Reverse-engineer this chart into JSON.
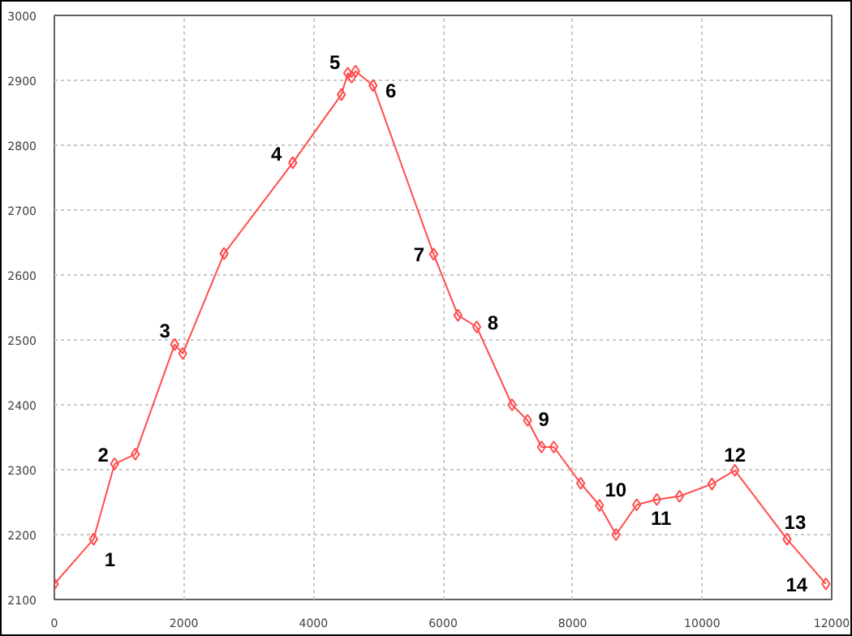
{
  "chart_data": {
    "type": "line",
    "x": [
      0,
      605,
      930,
      1250,
      1857,
      1982,
      2620,
      3680,
      4430,
      4530,
      4590,
      4650,
      4920,
      5855,
      6230,
      6520,
      7065,
      7305,
      7520,
      7710,
      8125,
      8415,
      8670,
      8990,
      9300,
      9650,
      10150,
      10505,
      11310,
      11910
    ],
    "series": [
      {
        "color": "#ff4d4d",
        "values": [
          2124,
          2193,
          2309,
          2324,
          2493,
          2479,
          2633,
          2773,
          2878,
          2911,
          2905,
          2914,
          2892,
          2632,
          2538,
          2520,
          2400,
          2376,
          2335,
          2335,
          2279,
          2245,
          2200,
          2246,
          2254,
          2259,
          2278,
          2299,
          2193,
          2124
        ]
      }
    ],
    "xlim": [
      0,
      12000
    ],
    "ylim": [
      2100,
      3000
    ],
    "xticks": [
      0,
      2000,
      4000,
      6000,
      8000,
      10000,
      12000
    ],
    "yticks": [
      2100,
      2200,
      2300,
      2400,
      2500,
      2600,
      2700,
      2800,
      2900,
      3000
    ],
    "grid": true,
    "marker": "diamond",
    "line_style": "solid",
    "annotations": [
      {
        "text": "1",
        "x": 605,
        "y": 2193
      },
      {
        "text": "2",
        "x": 930,
        "y": 2309
      },
      {
        "text": "3",
        "x": 1857,
        "y": 2493
      },
      {
        "text": "4",
        "x": 3680,
        "y": 2773
      },
      {
        "text": "5",
        "x": 4530,
        "y": 2911
      },
      {
        "text": "6",
        "x": 4920,
        "y": 2892
      },
      {
        "text": "7",
        "x": 5855,
        "y": 2632
      },
      {
        "text": "8",
        "x": 6520,
        "y": 2520
      },
      {
        "text": "9",
        "x": 7305,
        "y": 2376
      },
      {
        "text": "10",
        "x": 8415,
        "y": 2245
      },
      {
        "text": "11",
        "x": 8990,
        "y": 2246
      },
      {
        "text": "12",
        "x": 10505,
        "y": 2299
      },
      {
        "text": "13",
        "x": 11310,
        "y": 2193
      },
      {
        "text": "14",
        "x": 11910,
        "y": 2124
      }
    ]
  }
}
